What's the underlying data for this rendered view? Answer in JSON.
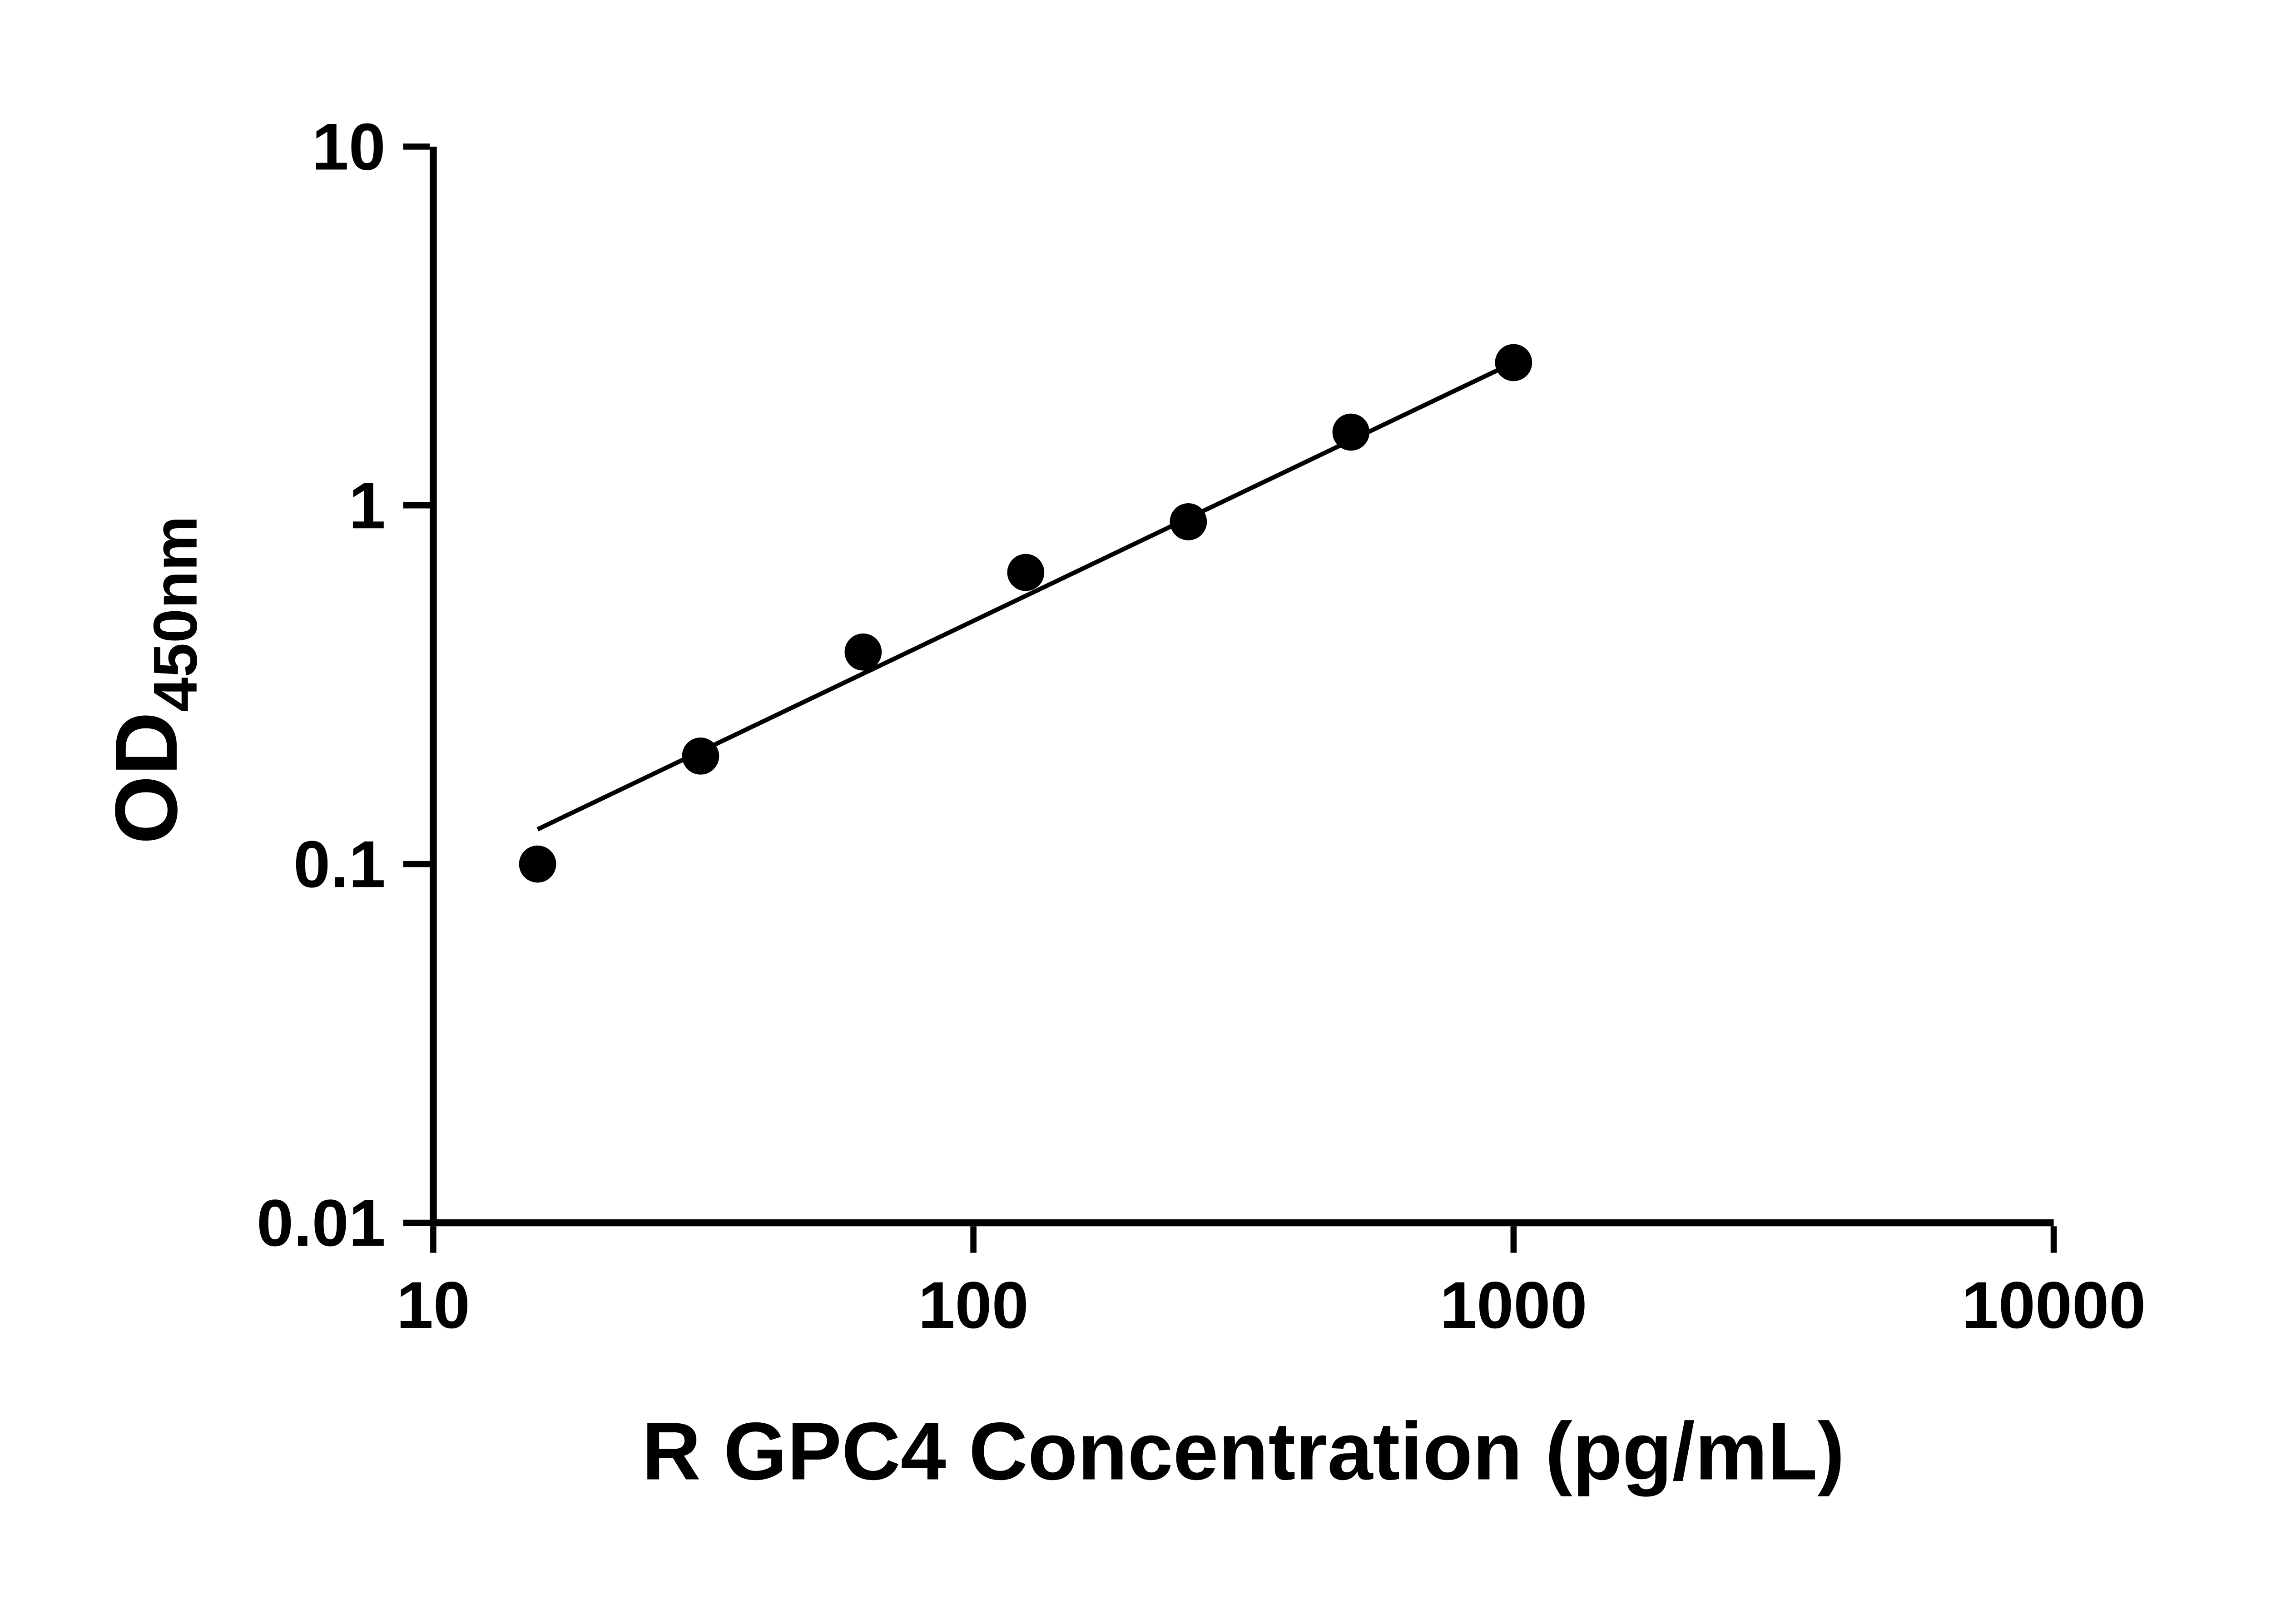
{
  "chart_data": {
    "type": "scatter",
    "title": "",
    "x_label": "R GPC4 Concentration (pg/mL)",
    "y_label": "OD450nm",
    "y_label_main": "OD",
    "y_label_subscript": "450nm",
    "x_scale": "log10",
    "y_scale": "log10",
    "x_range": [
      10,
      10000
    ],
    "y_range": [
      0.01,
      10
    ],
    "grid": false,
    "legend": "none",
    "x_ticks": [
      {
        "value": 10,
        "label": "10"
      },
      {
        "value": 100,
        "label": "100"
      },
      {
        "value": 1000,
        "label": "1000"
      },
      {
        "value": 10000,
        "label": "10000"
      }
    ],
    "y_ticks": [
      {
        "value": 0.01,
        "label": "0.01"
      },
      {
        "value": 0.1,
        "label": "0.1"
      },
      {
        "value": 1,
        "label": "1"
      },
      {
        "value": 10,
        "label": "10"
      }
    ],
    "points": [
      {
        "x": 15.6,
        "y": 0.1
      },
      {
        "x": 31.25,
        "y": 0.2
      },
      {
        "x": 62.5,
        "y": 0.39
      },
      {
        "x": 125,
        "y": 0.65
      },
      {
        "x": 250,
        "y": 0.9
      },
      {
        "x": 500,
        "y": 1.6
      },
      {
        "x": 1000,
        "y": 2.5
      }
    ],
    "trend_line": {
      "x1": 15.6,
      "y1": 0.125,
      "x2": 1000,
      "y2": 2.5
    },
    "marker_shape": "circle",
    "marker_color": "#000000",
    "line_color": "#000000",
    "axis_color": "#000000",
    "background_color": "#ffffff"
  }
}
